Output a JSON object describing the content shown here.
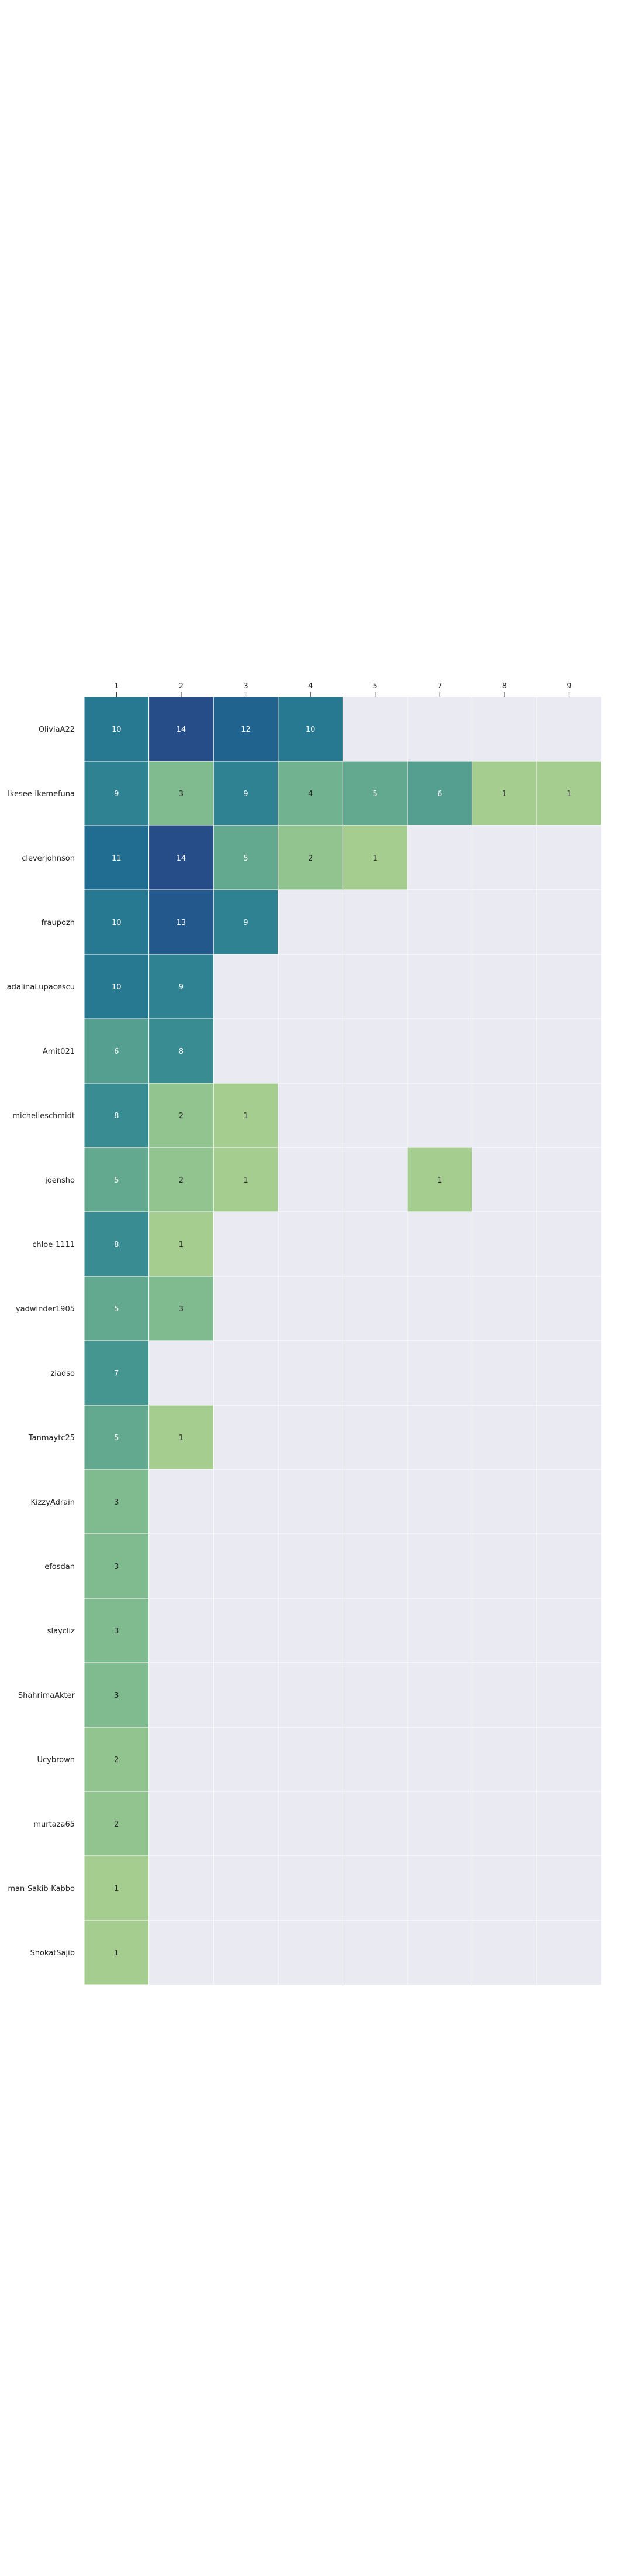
{
  "chart_data": {
    "type": "heatmap",
    "title": "",
    "xlabel": "",
    "ylabel": "",
    "x_ticks": [
      "1",
      "2",
      "3",
      "4",
      "5",
      "7",
      "8",
      "9"
    ],
    "y_labels": [
      "OliviaA22",
      "Ikesee-Ikemefuna",
      "cleverjohnson",
      "fraupozh",
      "adalinaLupacescu",
      "Amit021",
      "michelleschmidt",
      "joensho",
      "chloe-1111",
      "yadwinder1905",
      "ziadso",
      "Tanmaytc25",
      "KizzyAdrain",
      "efosdan",
      "slaycliz",
      "ShahrimaAkter",
      "Ucybrown",
      "murtaza65",
      "man-Sakib-Kabbo",
      "ShokatSajib"
    ],
    "values": [
      [
        10,
        14,
        12,
        10,
        null,
        null,
        null,
        null
      ],
      [
        9,
        3,
        9,
        4,
        5,
        6,
        1,
        1
      ],
      [
        11,
        14,
        5,
        2,
        1,
        null,
        null,
        null
      ],
      [
        10,
        13,
        9,
        null,
        null,
        null,
        null,
        null
      ],
      [
        10,
        9,
        null,
        null,
        null,
        null,
        null,
        null
      ],
      [
        6,
        8,
        null,
        null,
        null,
        null,
        null,
        null
      ],
      [
        8,
        2,
        1,
        null,
        null,
        null,
        null,
        null
      ],
      [
        5,
        2,
        1,
        null,
        null,
        1,
        null,
        null
      ],
      [
        8,
        1,
        null,
        null,
        null,
        null,
        null,
        null
      ],
      [
        5,
        3,
        null,
        null,
        null,
        null,
        null,
        null
      ],
      [
        7,
        null,
        null,
        null,
        null,
        null,
        null,
        null
      ],
      [
        5,
        1,
        null,
        null,
        null,
        null,
        null,
        null
      ],
      [
        3,
        null,
        null,
        null,
        null,
        null,
        null,
        null
      ],
      [
        3,
        null,
        null,
        null,
        null,
        null,
        null,
        null
      ],
      [
        3,
        null,
        null,
        null,
        null,
        null,
        null,
        null
      ],
      [
        3,
        null,
        null,
        null,
        null,
        null,
        null,
        null
      ],
      [
        2,
        null,
        null,
        null,
        null,
        null,
        null,
        null
      ],
      [
        2,
        null,
        null,
        null,
        null,
        null,
        null,
        null
      ],
      [
        1,
        null,
        null,
        null,
        null,
        null,
        null,
        null
      ],
      [
        1,
        null,
        null,
        null,
        null,
        null,
        null,
        null
      ]
    ],
    "colormap": "crest",
    "vmin": 1,
    "vmax": 14,
    "empty_cell_color": "#eaeaf2",
    "grid_line_color": "#ffffff",
    "x_ticks_position": "top",
    "legend": "none"
  }
}
